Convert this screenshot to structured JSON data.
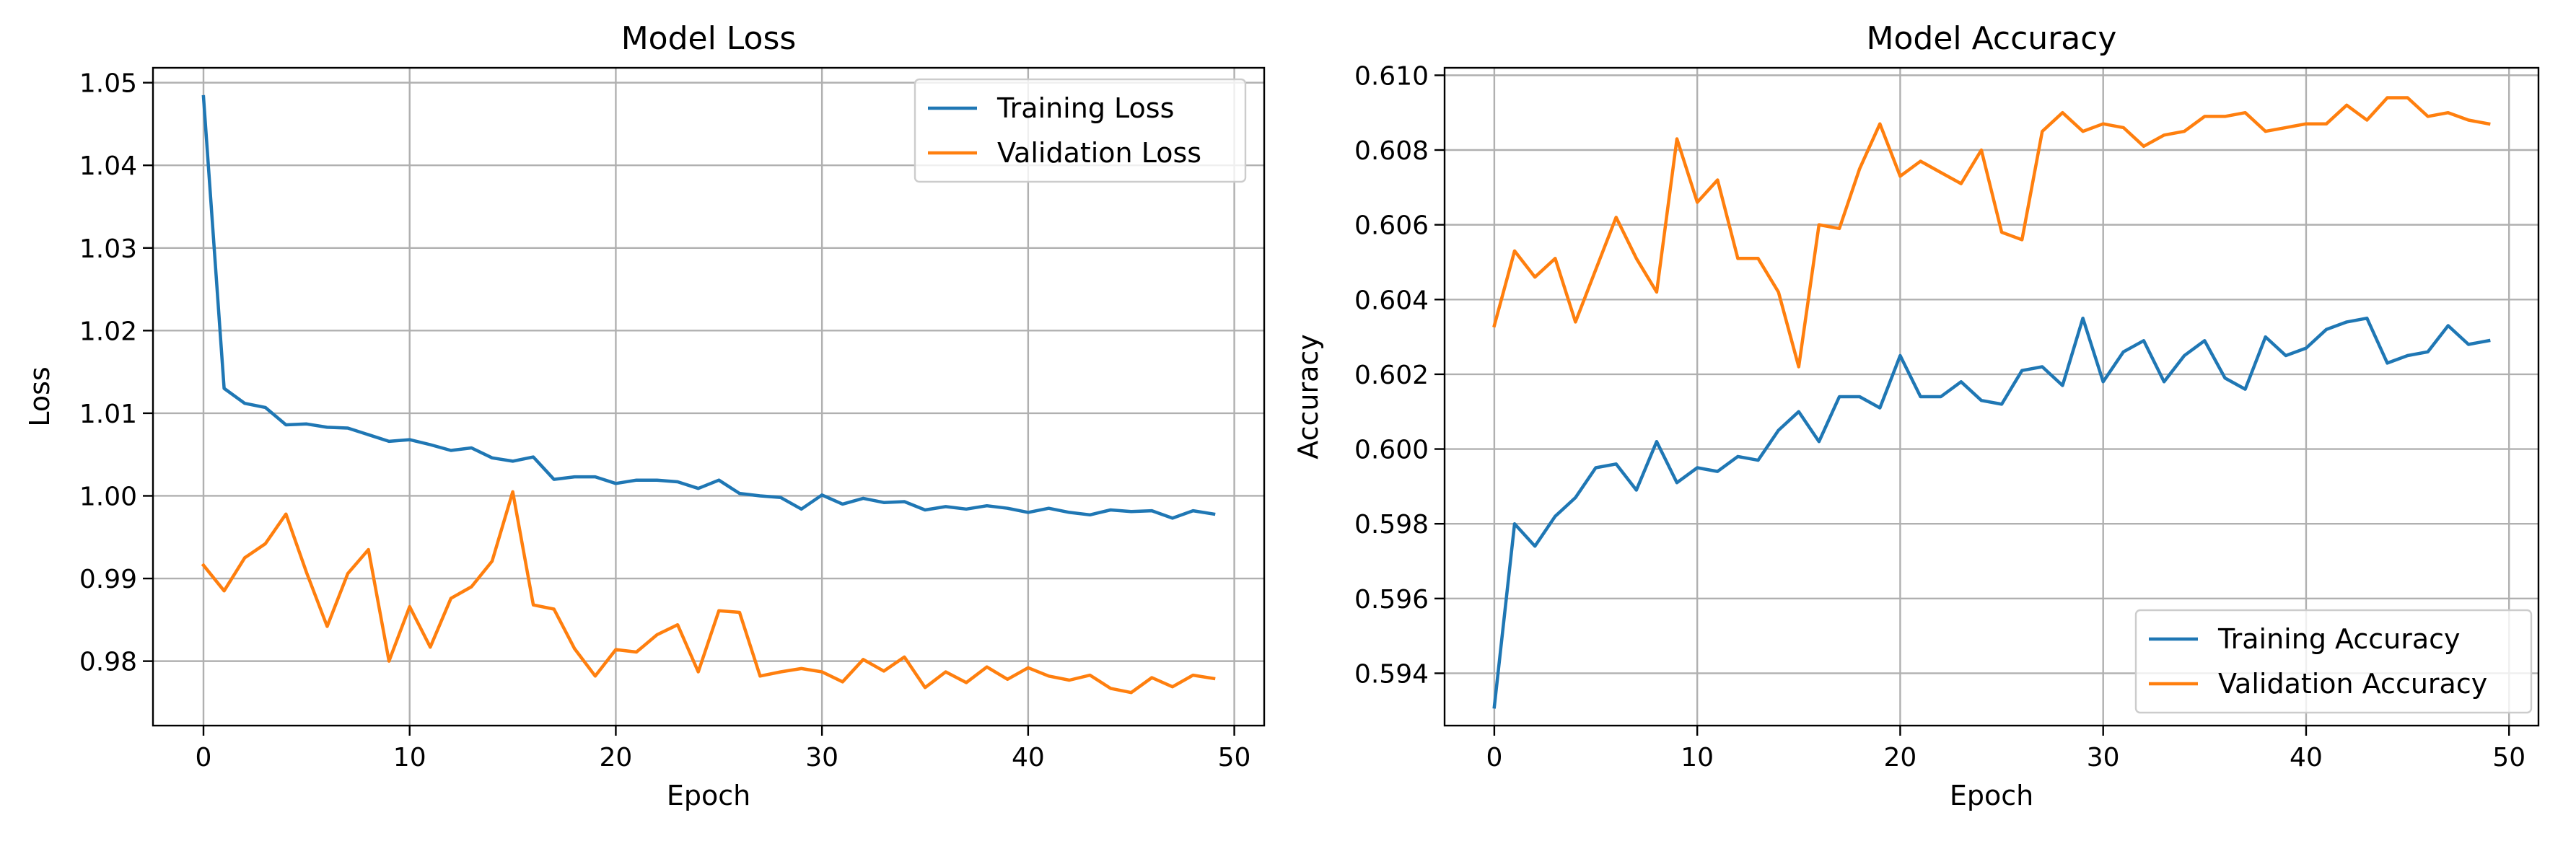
{
  "chart_data": [
    {
      "type": "line",
      "title": "Model Loss",
      "xlabel": "Epoch",
      "ylabel": "Loss",
      "xlim": [
        -2.45,
        51.45
      ],
      "ylim": [
        0.9722,
        1.0518
      ],
      "xticks": [
        0,
        10,
        20,
        30,
        40,
        50
      ],
      "yticks": [
        0.98,
        0.99,
        1.0,
        1.01,
        1.02,
        1.03,
        1.04,
        1.05
      ],
      "ytick_decimals": 2,
      "grid": true,
      "legend": "upper right",
      "x": [
        0,
        1,
        2,
        3,
        4,
        5,
        6,
        7,
        8,
        9,
        10,
        11,
        12,
        13,
        14,
        15,
        16,
        17,
        18,
        19,
        20,
        21,
        22,
        23,
        24,
        25,
        26,
        27,
        28,
        29,
        30,
        31,
        32,
        33,
        34,
        35,
        36,
        37,
        38,
        39,
        40,
        41,
        42,
        43,
        44,
        45,
        46,
        47,
        48,
        49
      ],
      "series": [
        {
          "name": "Training Loss",
          "color": "#1f77b4",
          "values": [
            1.0483,
            1.013,
            1.0112,
            1.0107,
            1.0086,
            1.0087,
            1.0083,
            1.0082,
            1.0074,
            1.0066,
            1.0068,
            1.0062,
            1.0055,
            1.0058,
            1.0046,
            1.0042,
            1.0047,
            1.002,
            1.0023,
            1.0023,
            1.0015,
            1.0019,
            1.0019,
            1.0017,
            1.0009,
            1.0019,
            1.0003,
            1.0,
            0.9998,
            0.9984,
            1.0001,
            0.999,
            0.9997,
            0.9992,
            0.9993,
            0.9983,
            0.9987,
            0.9984,
            0.9988,
            0.9985,
            0.998,
            0.9985,
            0.998,
            0.9977,
            0.9983,
            0.9981,
            0.9982,
            0.9973,
            0.9982,
            0.9978
          ]
        },
        {
          "name": "Validation Loss",
          "color": "#ff7f0e",
          "values": [
            0.9916,
            0.9885,
            0.9925,
            0.9942,
            0.9978,
            0.9907,
            0.9842,
            0.9906,
            0.9935,
            0.98,
            0.9866,
            0.9817,
            0.9876,
            0.989,
            0.9921,
            1.0005,
            0.9868,
            0.9863,
            0.9815,
            0.9782,
            0.9814,
            0.9811,
            0.9832,
            0.9844,
            0.9787,
            0.9861,
            0.9859,
            0.9782,
            0.9787,
            0.9791,
            0.9787,
            0.9775,
            0.9802,
            0.9788,
            0.9805,
            0.9768,
            0.9787,
            0.9774,
            0.9793,
            0.9778,
            0.9792,
            0.9782,
            0.9777,
            0.9783,
            0.9767,
            0.9762,
            0.978,
            0.9769,
            0.9783,
            0.9779
          ]
        }
      ]
    },
    {
      "type": "line",
      "title": "Model Accuracy",
      "xlabel": "Epoch",
      "ylabel": "Accuracy",
      "xlim": [
        -2.45,
        51.45
      ],
      "ylim": [
        0.5926,
        0.6102
      ],
      "xticks": [
        0,
        10,
        20,
        30,
        40,
        50
      ],
      "yticks": [
        0.594,
        0.596,
        0.598,
        0.6,
        0.602,
        0.604,
        0.606,
        0.608,
        0.61
      ],
      "ytick_decimals": 3,
      "grid": true,
      "legend": "lower right",
      "x": [
        0,
        1,
        2,
        3,
        4,
        5,
        6,
        7,
        8,
        9,
        10,
        11,
        12,
        13,
        14,
        15,
        16,
        17,
        18,
        19,
        20,
        21,
        22,
        23,
        24,
        25,
        26,
        27,
        28,
        29,
        30,
        31,
        32,
        33,
        34,
        35,
        36,
        37,
        38,
        39,
        40,
        41,
        42,
        43,
        44,
        45,
        46,
        47,
        48,
        49
      ],
      "series": [
        {
          "name": "Training Accuracy",
          "color": "#1f77b4",
          "values": [
            0.5931,
            0.598,
            0.5974,
            0.5982,
            0.5987,
            0.5995,
            0.5996,
            0.5989,
            0.6002,
            0.5991,
            0.5995,
            0.5994,
            0.5998,
            0.5997,
            0.6005,
            0.601,
            0.6002,
            0.6014,
            0.6014,
            0.6011,
            0.6025,
            0.6014,
            0.6014,
            0.6018,
            0.6013,
            0.6012,
            0.6021,
            0.6022,
            0.6017,
            0.6035,
            0.6018,
            0.6026,
            0.6029,
            0.6018,
            0.6025,
            0.6029,
            0.6019,
            0.6016,
            0.603,
            0.6025,
            0.6027,
            0.6032,
            0.6034,
            0.6035,
            0.6023,
            0.6025,
            0.6026,
            0.6033,
            0.6028,
            0.6029
          ]
        },
        {
          "name": "Validation Accuracy",
          "color": "#ff7f0e",
          "values": [
            0.6033,
            0.6053,
            0.6046,
            0.6051,
            0.6034,
            0.6048,
            0.6062,
            0.6051,
            0.6042,
            0.6083,
            0.6066,
            0.6072,
            0.6051,
            0.6051,
            0.6042,
            0.6022,
            0.606,
            0.6059,
            0.6075,
            0.6087,
            0.6073,
            0.6077,
            0.6074,
            0.6071,
            0.608,
            0.6058,
            0.6056,
            0.6085,
            0.609,
            0.6085,
            0.6087,
            0.6086,
            0.6081,
            0.6084,
            0.6085,
            0.6089,
            0.6089,
            0.609,
            0.6085,
            0.6086,
            0.6087,
            0.6087,
            0.6092,
            0.6088,
            0.6094,
            0.6094,
            0.6089,
            0.609,
            0.6088,
            0.6087
          ]
        }
      ]
    }
  ]
}
